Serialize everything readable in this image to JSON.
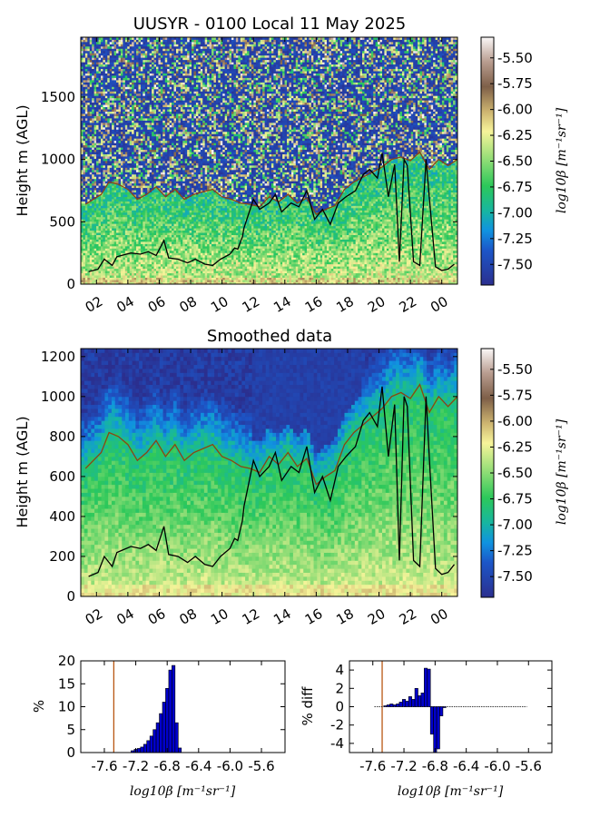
{
  "chart_data": [
    {
      "type": "heatmap",
      "title": "UUSYR - 0100 Local 11 May 2025",
      "ylabel": "Height m (AGL)",
      "xlabel": "",
      "x_ticks": [
        "02",
        "04",
        "06",
        "08",
        "10",
        "12",
        "14",
        "16",
        "18",
        "20",
        "22",
        "00"
      ],
      "x_tick_hours": [
        2,
        4,
        6,
        8,
        10,
        12,
        14,
        16,
        18,
        20,
        22,
        24
      ],
      "xlim": [
        1,
        25
      ],
      "y_ticks": [
        "0",
        "500",
        "1000",
        "1500"
      ],
      "y_tick_values": [
        0,
        500,
        1000,
        1500
      ],
      "ylim": [
        0,
        1980
      ],
      "colorbar": {
        "label": "log10β [m⁻¹sr⁻¹]",
        "ticks": [
          "-5.50",
          "-5.75",
          "-6.00",
          "-6.25",
          "-6.50",
          "-6.75",
          "-7.00",
          "-7.25",
          "-7.50"
        ],
        "tick_values": [
          -5.5,
          -5.75,
          -6.0,
          -6.25,
          -6.5,
          -6.75,
          -7.0,
          -7.25,
          -7.5
        ],
        "range": [
          -7.7,
          -5.3
        ]
      },
      "mixing_height_line": {
        "color": "#000000",
        "hours": [
          1.5,
          2.1,
          2.5,
          3.0,
          3.3,
          3.6,
          4.2,
          4.8,
          5.3,
          5.8,
          6.3,
          6.6,
          7.2,
          7.8,
          8.3,
          8.9,
          9.4,
          9.9,
          10.5,
          10.8,
          11.0,
          11.3,
          11.4,
          12.0,
          12.4,
          13.0,
          13.4,
          13.8,
          14.4,
          14.9,
          15.4,
          15.9,
          16.4,
          16.9,
          17.4,
          17.9,
          18.5,
          19.0,
          19.4,
          19.9,
          20.2,
          20.6,
          21.0,
          21.3,
          21.6,
          21.8,
          22.2,
          22.6,
          23.0,
          23.2,
          23.6,
          24.0,
          24.4,
          24.8
        ],
        "heights": [
          100,
          120,
          200,
          150,
          220,
          230,
          250,
          240,
          260,
          230,
          350,
          210,
          200,
          170,
          200,
          160,
          150,
          200,
          240,
          290,
          280,
          380,
          450,
          680,
          600,
          650,
          720,
          580,
          650,
          620,
          750,
          520,
          600,
          480,
          650,
          700,
          750,
          880,
          920,
          850,
          1050,
          700,
          960,
          180,
          1000,
          950,
          180,
          150,
          1000,
          700,
          140,
          110,
          120,
          160
        ]
      },
      "aerosol_layer_line": {
        "color": "#8b4513",
        "hours": [
          1.3,
          1.8,
          2.3,
          2.8,
          3.4,
          4.0,
          4.6,
          5.2,
          5.8,
          6.4,
          7.0,
          7.6,
          8.2,
          8.8,
          9.4,
          10.0,
          10.6,
          11.2,
          11.8,
          12.4,
          13.0,
          13.6,
          14.2,
          14.8,
          15.4,
          16.0,
          16.6,
          17.2,
          17.8,
          18.4,
          19.0,
          19.6,
          20.2,
          20.8,
          21.4,
          22.0,
          22.6,
          23.2,
          23.8,
          24.4,
          25.0
        ],
        "heights": [
          640,
          680,
          720,
          820,
          800,
          760,
          680,
          720,
          780,
          700,
          760,
          680,
          720,
          740,
          760,
          700,
          680,
          650,
          640,
          620,
          700,
          660,
          720,
          650,
          690,
          560,
          600,
          630,
          760,
          820,
          860,
          900,
          940,
          1000,
          1020,
          990,
          1060,
          920,
          1000,
          950,
          1000
        ]
      }
    },
    {
      "type": "heatmap",
      "title": "Smoothed data",
      "ylabel": "Height m (AGL)",
      "xlabel": "",
      "x_ticks": [
        "02",
        "04",
        "06",
        "08",
        "10",
        "12",
        "14",
        "16",
        "18",
        "20",
        "22",
        "00"
      ],
      "x_tick_hours": [
        2,
        4,
        6,
        8,
        10,
        12,
        14,
        16,
        18,
        20,
        22,
        24
      ],
      "xlim": [
        1,
        25
      ],
      "y_ticks": [
        "0",
        "200",
        "400",
        "600",
        "800",
        "1000",
        "1200"
      ],
      "y_tick_values": [
        0,
        200,
        400,
        600,
        800,
        1000,
        1200
      ],
      "ylim": [
        0,
        1240
      ],
      "colorbar": {
        "label": "log10β [m⁻¹sr⁻¹]",
        "ticks": [
          "-5.50",
          "-5.75",
          "-6.00",
          "-6.25",
          "-6.50",
          "-6.75",
          "-7.00",
          "-7.25",
          "-7.50"
        ],
        "tick_values": [
          -5.5,
          -5.75,
          -6.0,
          -6.25,
          -6.5,
          -6.75,
          -7.0,
          -7.25,
          -7.5
        ],
        "range": [
          -7.7,
          -5.3
        ]
      },
      "mixing_height_line": {
        "color": "#000000",
        "hours": [
          1.5,
          2.1,
          2.5,
          3.0,
          3.3,
          3.6,
          4.2,
          4.8,
          5.3,
          5.8,
          6.3,
          6.6,
          7.2,
          7.8,
          8.3,
          8.9,
          9.4,
          9.9,
          10.5,
          10.8,
          11.0,
          11.3,
          11.4,
          12.0,
          12.4,
          13.0,
          13.4,
          13.8,
          14.4,
          14.9,
          15.4,
          15.9,
          16.4,
          16.9,
          17.4,
          17.9,
          18.5,
          19.0,
          19.4,
          19.9,
          20.2,
          20.6,
          21.0,
          21.3,
          21.6,
          21.8,
          22.2,
          22.6,
          23.0,
          23.2,
          23.6,
          24.0,
          24.4,
          24.8
        ],
        "heights": [
          100,
          120,
          200,
          150,
          220,
          230,
          250,
          240,
          260,
          230,
          350,
          210,
          200,
          170,
          200,
          160,
          150,
          200,
          240,
          290,
          280,
          380,
          450,
          680,
          600,
          650,
          720,
          580,
          650,
          620,
          750,
          520,
          600,
          480,
          650,
          700,
          750,
          880,
          920,
          850,
          1050,
          700,
          960,
          180,
          1000,
          950,
          180,
          150,
          1000,
          700,
          140,
          110,
          120,
          160
        ]
      },
      "aerosol_layer_line": {
        "color": "#8b4513",
        "hours": [
          1.3,
          1.8,
          2.3,
          2.8,
          3.4,
          4.0,
          4.6,
          5.2,
          5.8,
          6.4,
          7.0,
          7.6,
          8.2,
          8.8,
          9.4,
          10.0,
          10.6,
          11.2,
          11.8,
          12.4,
          13.0,
          13.6,
          14.2,
          14.8,
          15.4,
          16.0,
          16.6,
          17.2,
          17.8,
          18.4,
          19.0,
          19.6,
          20.2,
          20.8,
          21.4,
          22.0,
          22.6,
          23.2,
          23.8,
          24.4,
          25.0
        ],
        "heights": [
          640,
          680,
          720,
          820,
          800,
          760,
          680,
          720,
          780,
          700,
          760,
          680,
          720,
          740,
          760,
          700,
          680,
          650,
          640,
          620,
          700,
          660,
          720,
          650,
          690,
          560,
          600,
          630,
          760,
          820,
          860,
          900,
          940,
          1000,
          1020,
          990,
          1060,
          920,
          1000,
          950,
          1000
        ]
      }
    },
    {
      "type": "bar",
      "title": "",
      "xlabel": "log10β [m⁻¹sr⁻¹]",
      "ylabel": "%",
      "x_ticks": [
        "-7.6",
        "-7.2",
        "-6.8",
        "-6.4",
        "-6.0",
        "-5.6"
      ],
      "x_tick_values": [
        -7.6,
        -7.2,
        -6.8,
        -6.4,
        -6.0,
        -5.6
      ],
      "xlim": [
        -7.9,
        -5.3
      ],
      "y_ticks": [
        "0",
        "5",
        "10",
        "15",
        "20"
      ],
      "y_tick_values": [
        0,
        5,
        10,
        15,
        20
      ],
      "ylim": [
        0,
        20
      ],
      "bar_color": "#0000cc",
      "threshold_line": {
        "x": -7.48,
        "color": "#b34a00"
      },
      "bin_width": 0.04,
      "bin_starts": [
        -7.26,
        -7.22,
        -7.18,
        -7.14,
        -7.1,
        -7.06,
        -7.02,
        -6.98,
        -6.94,
        -6.9,
        -6.86,
        -6.82,
        -6.78,
        -6.74,
        -6.7,
        -6.66
      ],
      "values": [
        0.4,
        0.7,
        0.9,
        1.2,
        1.8,
        2.6,
        3.6,
        5.0,
        6.5,
        8.5,
        11.0,
        14.0,
        18.0,
        19.0,
        6.5,
        1.0
      ]
    },
    {
      "type": "bar",
      "title": "",
      "xlabel": "log10β [m⁻¹sr⁻¹]",
      "ylabel": "% diff",
      "x_ticks": [
        "-7.6",
        "-7.2",
        "-6.8",
        "-6.4",
        "-6.0",
        "-5.6"
      ],
      "x_tick_values": [
        -7.6,
        -7.2,
        -6.8,
        -6.4,
        -6.0,
        -5.6
      ],
      "xlim": [
        -7.9,
        -5.3
      ],
      "y_ticks": [
        "4",
        "2",
        "0",
        "-2",
        "-4"
      ],
      "y_tick_values": [
        4,
        2,
        0,
        -2,
        -4
      ],
      "ylim": [
        -5,
        5
      ],
      "bar_color": "#0000cc",
      "threshold_line": {
        "x": -7.48,
        "color": "#b34a00"
      },
      "bin_width": 0.04,
      "bin_starts": [
        -7.46,
        -7.42,
        -7.38,
        -7.34,
        -7.3,
        -7.26,
        -7.22,
        -7.18,
        -7.14,
        -7.1,
        -7.06,
        -7.02,
        -6.98,
        -6.94,
        -6.9,
        -6.86,
        -6.82,
        -6.78,
        -6.74,
        -6.7
      ],
      "values": [
        0.1,
        0.2,
        0.3,
        0.2,
        0.3,
        0.5,
        0.8,
        0.6,
        1.1,
        0.8,
        2.0,
        1.2,
        1.5,
        4.2,
        4.1,
        -3.0,
        -5.0,
        -4.6,
        -1.0,
        -0.1
      ]
    }
  ]
}
